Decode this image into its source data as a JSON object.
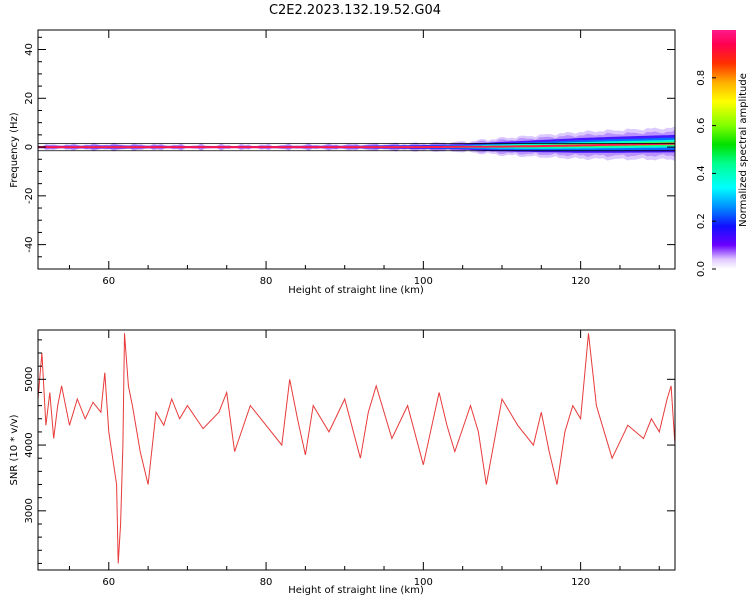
{
  "figure": {
    "title": "C2E2.2023.132.19.52.G04"
  },
  "chart_data": [
    {
      "type": "heatmap",
      "xlabel": "Height of straight line (km)",
      "ylabel": "Frequency (Hz)",
      "xlim": [
        51,
        132
      ],
      "ylim": [
        -50,
        48
      ],
      "x_ticks": [
        60,
        80,
        100,
        120
      ],
      "y_ticks": [
        -40,
        -20,
        0,
        20,
        40
      ],
      "y_tick_labels": [
        "-40",
        "-20",
        "0",
        "20",
        "40"
      ],
      "x_tick_labels": [
        "60",
        "80",
        "100",
        "120"
      ],
      "grid": false,
      "colorbar": {
        "label": "Normalized spectral amplitude",
        "range": [
          0,
          1
        ],
        "ticks": [
          0.0,
          0.2,
          0.4,
          0.6,
          0.8
        ],
        "tick_labels": [
          "0.0",
          "0.2",
          "0.4",
          "0.6",
          "0.8"
        ],
        "colormap": "gist_ncar_like"
      },
      "center_line": {
        "x": [
          51,
          60,
          70,
          80,
          90,
          100,
          105,
          110,
          115,
          120,
          125,
          132
        ],
        "frequency_hz": [
          0,
          0,
          0,
          0,
          0,
          0,
          0.1,
          0.2,
          0.4,
          0.7,
          1.0,
          1.4
        ],
        "spread_hz": [
          0.8,
          1.2,
          0.8,
          0.8,
          1.0,
          1.5,
          2.0,
          3.5,
          4.5,
          5.5,
          6.0,
          6.5
        ]
      }
    },
    {
      "type": "line",
      "xlabel": "Height of straight line (km)",
      "ylabel": "SNR (10 * v/v)",
      "xlim": [
        51,
        132
      ],
      "ylim": [
        2100,
        5750
      ],
      "x_ticks": [
        60,
        80,
        100,
        120
      ],
      "x_tick_labels": [
        "60",
        "80",
        "100",
        "120"
      ],
      "y_ticks": [
        3000,
        4000,
        5000
      ],
      "y_tick_labels": [
        "3000",
        "4000",
        "5000"
      ],
      "grid": false,
      "series": [
        {
          "color": "#e83a3a",
          "x": [
            51.0,
            51.5,
            52.0,
            52.5,
            53.0,
            53.5,
            54.0,
            55.0,
            56.0,
            57.0,
            58.0,
            59.0,
            59.5,
            60.0,
            60.5,
            61.0,
            61.2,
            61.5,
            61.8,
            62.0,
            62.5,
            63.0,
            64.0,
            65.0,
            66.0,
            67.0,
            68.0,
            69.0,
            70.0,
            72.0,
            74.0,
            75.0,
            76.0,
            78.0,
            80.0,
            82.0,
            83.0,
            84.0,
            85.0,
            86.0,
            88.0,
            90.0,
            92.0,
            93.0,
            94.0,
            96.0,
            98.0,
            100.0,
            102.0,
            103.0,
            104.0,
            106.0,
            107.0,
            108.0,
            110.0,
            112.0,
            114.0,
            115.0,
            116.0,
            117.0,
            118.0,
            119.0,
            120.0,
            121.0,
            122.0,
            124.0,
            126.0,
            128.0,
            129.0,
            130.0,
            131.0,
            131.5,
            132.0
          ],
          "y": [
            4700,
            5400,
            4300,
            4800,
            4100,
            4600,
            4900,
            4300,
            4700,
            4400,
            4650,
            4500,
            5100,
            4200,
            3800,
            3400,
            2200,
            2800,
            4000,
            5700,
            4900,
            4600,
            3900,
            3400,
            4500,
            4300,
            4700,
            4400,
            4600,
            4250,
            4500,
            4800,
            3900,
            4600,
            4300,
            4000,
            5000,
            4400,
            3850,
            4600,
            4200,
            4700,
            3800,
            4500,
            4900,
            4100,
            4600,
            3700,
            4800,
            4300,
            3900,
            4600,
            4200,
            3400,
            4700,
            4300,
            4000,
            4500,
            3900,
            3400,
            4200,
            4600,
            4400,
            5700,
            4600,
            3800,
            4300,
            4100,
            4400,
            4200,
            4700,
            4900,
            4000
          ]
        }
      ]
    }
  ]
}
